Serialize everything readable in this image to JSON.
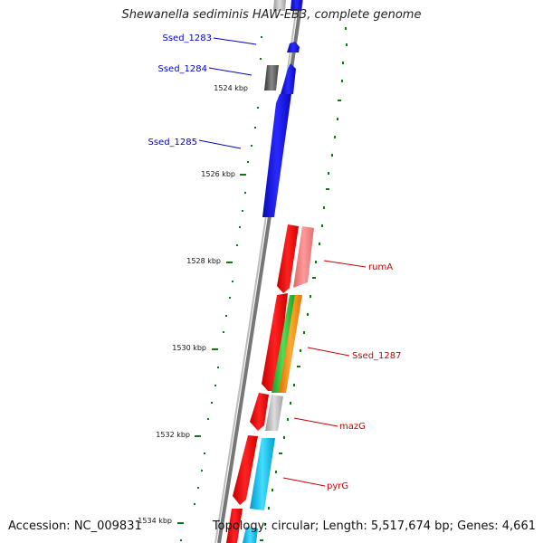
{
  "title": "Shewanella sediminis HAW-EB3, complete genome",
  "footer": {
    "accession": "Accession: NC_009831",
    "topology": "Topology: circular; Length: 5,517,674 bp; Genes: 4,661"
  },
  "kbp_ticks": [
    "1524 kbp",
    "1526 kbp",
    "1528 kbp",
    "1530 kbp",
    "1532 kbp",
    "1534 kbp"
  ],
  "gene_labels": [
    "Ssed_1283",
    "Ssed_1284",
    "Ssed_1285",
    "rumA",
    "Ssed_1287",
    "mazG",
    "pyrG"
  ],
  "colors": {
    "blue": "#1010ee",
    "red": "#ee1111",
    "pink": "#ee7777",
    "green": "#33bb33",
    "orange": "#ff8800",
    "cyan": "#11bbee",
    "grey": "#bbbbbb",
    "dark_grey": "#555555",
    "tick_green": "#117711",
    "label_blue": "#0000cc",
    "label_red": "#cc0000"
  }
}
